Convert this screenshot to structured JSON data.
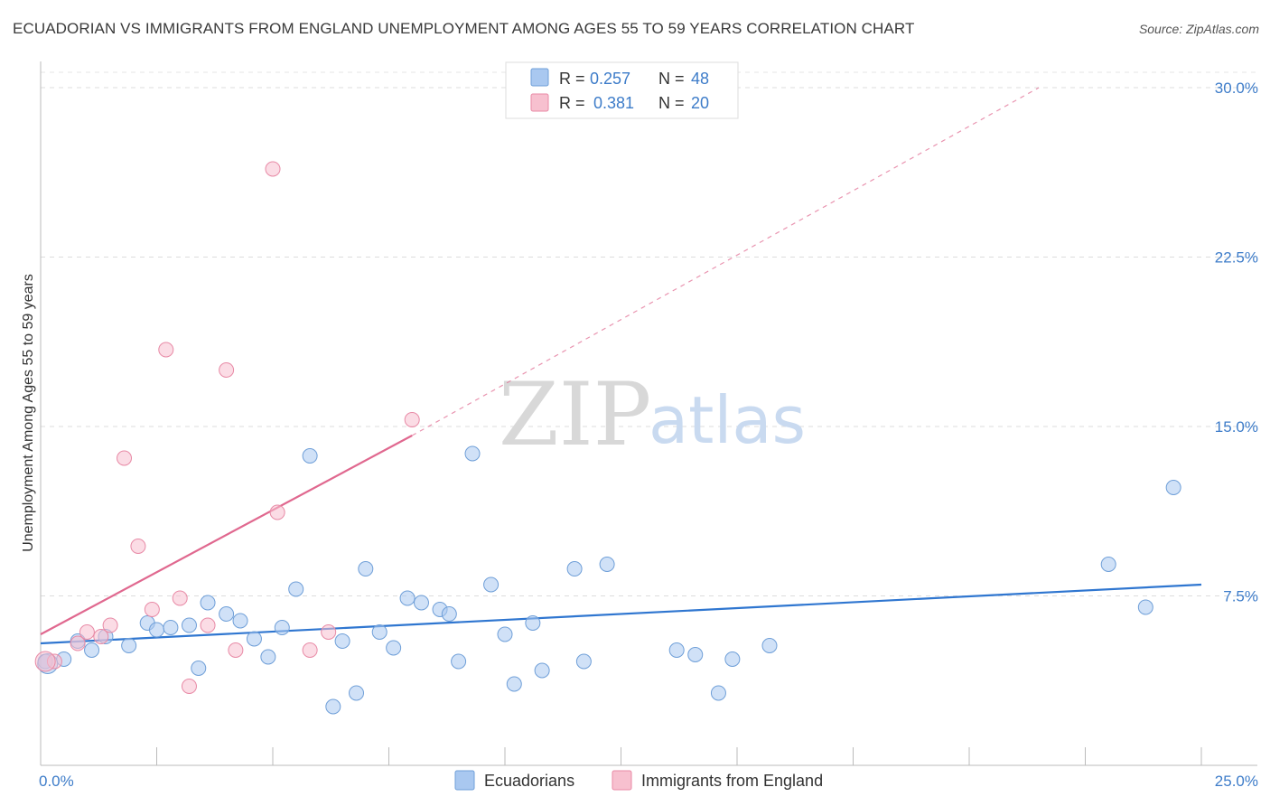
{
  "title": "ECUADORIAN VS IMMIGRANTS FROM ENGLAND UNEMPLOYMENT AMONG AGES 55 TO 59 YEARS CORRELATION CHART",
  "source": "Source: ZipAtlas.com",
  "watermark": {
    "zip": "ZIP",
    "atlas": "atlas"
  },
  "chart_data": {
    "type": "scatter",
    "xlabel": "",
    "ylabel": "Unemployment Among Ages 55 to 59 years",
    "xlim": [
      0,
      25
    ],
    "ylim": [
      0,
      30
    ],
    "x_tick_labels": [
      "0.0%",
      "25.0%"
    ],
    "y_ticks": [
      7.5,
      15.0,
      22.5,
      30.0
    ],
    "y_tick_labels": [
      "7.5%",
      "15.0%",
      "22.5%",
      "30.0%"
    ],
    "grid": "horizontal dashed",
    "legend": {
      "position": "top-center",
      "entries": [
        {
          "r_label": "R =",
          "r_value": "0.257",
          "n_label": "N =",
          "n_value": "48"
        },
        {
          "r_label": "R =",
          "r_value": "0.381",
          "n_label": "N =",
          "n_value": "20"
        }
      ]
    },
    "series": [
      {
        "name": "Ecuadorians",
        "color": "#a9c8f0",
        "edge_color": "#6f9fd8",
        "line_color": "#2f76d0",
        "trend": {
          "x0": 0,
          "y0": 5.4,
          "x1": 25,
          "y1": 8.0,
          "dashed_to": null
        },
        "points": [
          [
            0.1,
            4.6
          ],
          [
            0.5,
            4.7
          ],
          [
            0.8,
            5.5
          ],
          [
            1.1,
            5.1
          ],
          [
            1.4,
            5.7
          ],
          [
            1.9,
            5.3
          ],
          [
            2.3,
            6.3
          ],
          [
            2.5,
            6.0
          ],
          [
            2.8,
            6.1
          ],
          [
            3.2,
            6.2
          ],
          [
            3.4,
            4.3
          ],
          [
            3.6,
            7.2
          ],
          [
            4.0,
            6.7
          ],
          [
            4.3,
            6.4
          ],
          [
            4.6,
            5.6
          ],
          [
            4.9,
            4.8
          ],
          [
            5.2,
            6.1
          ],
          [
            5.5,
            7.8
          ],
          [
            5.8,
            13.7
          ],
          [
            6.3,
            2.6
          ],
          [
            6.5,
            5.5
          ],
          [
            6.8,
            3.2
          ],
          [
            7.0,
            8.7
          ],
          [
            7.3,
            5.9
          ],
          [
            7.6,
            5.2
          ],
          [
            7.9,
            7.4
          ],
          [
            8.2,
            7.2
          ],
          [
            8.6,
            6.9
          ],
          [
            8.8,
            6.7
          ],
          [
            9.0,
            4.6
          ],
          [
            9.3,
            13.8
          ],
          [
            9.7,
            8.0
          ],
          [
            10.0,
            5.8
          ],
          [
            10.2,
            3.6
          ],
          [
            10.6,
            6.3
          ],
          [
            10.8,
            4.2
          ],
          [
            11.5,
            8.7
          ],
          [
            11.7,
            4.6
          ],
          [
            12.2,
            8.9
          ],
          [
            13.7,
            5.1
          ],
          [
            14.1,
            4.9
          ],
          [
            14.6,
            3.2
          ],
          [
            14.9,
            4.7
          ],
          [
            15.7,
            5.3
          ],
          [
            23.0,
            8.9
          ],
          [
            23.8,
            7.0
          ],
          [
            24.4,
            12.3
          ],
          [
            0.15,
            4.5
          ]
        ]
      },
      {
        "name": "Immigrants from England",
        "color": "#f7c0cf",
        "edge_color": "#e88aa6",
        "line_color": "#e0688f",
        "trend": {
          "x0": 0,
          "y0": 5.8,
          "x1": 8.0,
          "y1": 14.6,
          "dashed_to": [
            21.5,
            30.0
          ]
        },
        "points": [
          [
            0.3,
            4.6
          ],
          [
            0.8,
            5.4
          ],
          [
            1.0,
            5.9
          ],
          [
            1.3,
            5.7
          ],
          [
            1.5,
            6.2
          ],
          [
            1.8,
            13.6
          ],
          [
            2.1,
            9.7
          ],
          [
            2.4,
            6.9
          ],
          [
            2.7,
            18.4
          ],
          [
            3.0,
            7.4
          ],
          [
            3.2,
            3.5
          ],
          [
            3.6,
            6.2
          ],
          [
            4.0,
            17.5
          ],
          [
            4.2,
            5.1
          ],
          [
            5.1,
            11.2
          ],
          [
            5.0,
            26.4
          ],
          [
            5.8,
            5.1
          ],
          [
            6.2,
            5.9
          ],
          [
            8.0,
            15.3
          ],
          [
            0.1,
            4.6
          ]
        ]
      }
    ]
  },
  "bottom_legend": [
    "Ecuadorians",
    "Immigrants from England"
  ]
}
